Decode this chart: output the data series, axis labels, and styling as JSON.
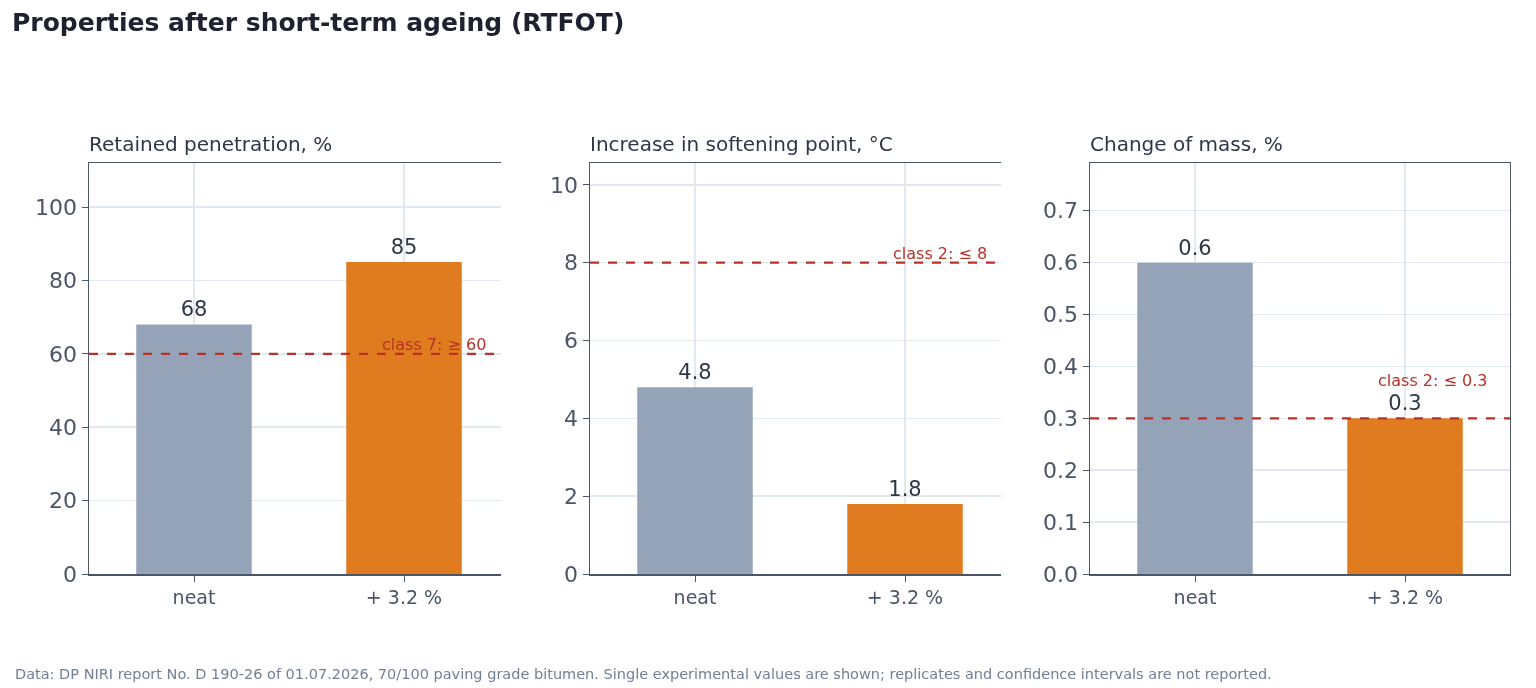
{
  "chart_data": [
    {
      "type": "bar",
      "title": "Retained penetration, %",
      "annotations": [
        "Properties after short-term ageing (RTFOT)"
      ],
      "categories": [
        "neat",
        "+ 3.2 %"
      ],
      "values": [
        68,
        85
      ],
      "colors": [
        "#94a3b8",
        "#e07b1f"
      ],
      "ylim": [
        0,
        112
      ],
      "yticks": [
        0,
        20,
        40,
        60,
        80,
        100
      ],
      "grid": true,
      "data_labels": true,
      "ref_lines": [
        {
          "axis": "y",
          "value": 60,
          "label": "class 7: ≥ 60",
          "color": "#b83227",
          "line_style": "dashed"
        }
      ]
    },
    {
      "type": "bar",
      "title": "Increase in softening point, °C",
      "categories": [
        "neat",
        "+ 3.2 %"
      ],
      "values": [
        4.8,
        1.8
      ],
      "colors": [
        "#94a3b8",
        "#e07b1f"
      ],
      "ylim": [
        0,
        10.56
      ],
      "yticks": [
        0,
        2,
        4,
        6,
        8,
        10
      ],
      "grid": true,
      "data_labels": true,
      "ref_lines": [
        {
          "axis": "y",
          "value": 8,
          "label": "class 2: ≤ 8",
          "color": "#b83227",
          "line_style": "dashed"
        }
      ]
    },
    {
      "type": "bar",
      "title": "Change of mass, %",
      "annotations": [
        "Data: DP NIRI report No. D 190-26 of 01.07.2026, 70/100 paving grade bitumen. Single experimental values are shown; replicates and confidence intervals are not reported."
      ],
      "categories": [
        "neat",
        "+ 3.2 %"
      ],
      "values": [
        0.6,
        0.3
      ],
      "colors": [
        "#94a3b8",
        "#e07b1f"
      ],
      "ylim": [
        0,
        0.792
      ],
      "yticks": [
        {
          "value": 0,
          "label": "0.0"
        },
        0.1,
        0.2,
        0.3,
        0.4,
        0.5,
        0.6,
        0.7
      ],
      "grid": true,
      "data_labels": true,
      "ref_lines": [
        {
          "axis": "y",
          "value": 0.3,
          "label": "class 2: ≤ 0.3",
          "color": "#b83227",
          "line_style": "dashed"
        }
      ]
    }
  ]
}
